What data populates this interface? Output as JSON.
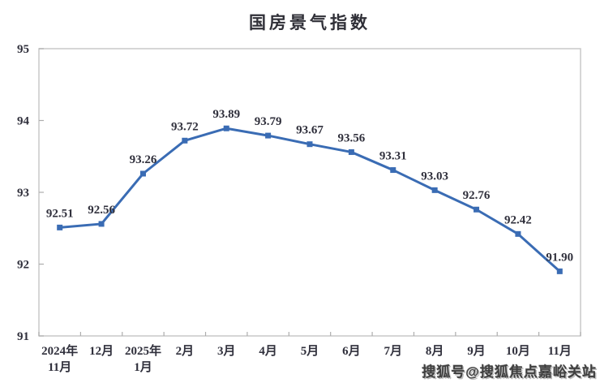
{
  "chart_data": {
    "type": "line",
    "title": "国房景气指数",
    "categories": [
      "2024年\n11月",
      "12月",
      "2025年\n1月",
      "2月",
      "3月",
      "4月",
      "5月",
      "6月",
      "7月",
      "8月",
      "9月",
      "10月",
      "11月"
    ],
    "values": [
      92.51,
      92.56,
      93.26,
      93.72,
      93.89,
      93.79,
      93.67,
      93.56,
      93.31,
      93.03,
      92.76,
      92.42,
      91.9
    ],
    "data_labels": [
      "92.51",
      "92.56",
      "93.26",
      "93.72",
      "93.89",
      "93.79",
      "93.67",
      "93.56",
      "93.31",
      "93.03",
      "92.76",
      "92.42",
      "91.90"
    ],
    "xlabel": "",
    "ylabel": "",
    "ylim": [
      91,
      95
    ],
    "yticks": [
      "91",
      "92",
      "93",
      "94",
      "95"
    ],
    "grid": false,
    "legend": "none",
    "line_color": "#3A6CB4",
    "marker": "square",
    "axis_color": "#c9c9c9",
    "tick_color": "#adadad",
    "text_color": "#30303c"
  },
  "watermark": {
    "text": "搜狐号@搜狐焦点嘉峪关站"
  }
}
